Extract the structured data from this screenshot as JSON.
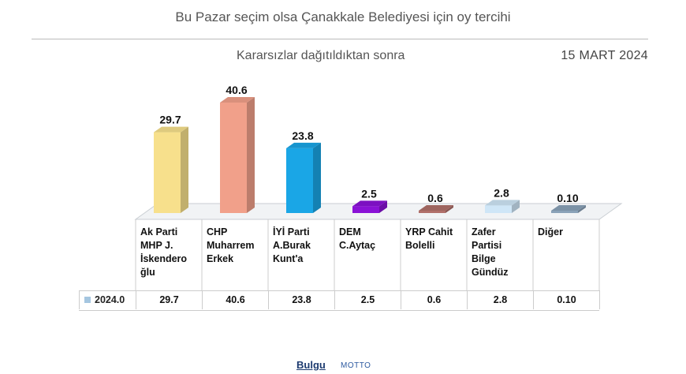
{
  "header": {
    "title": "Bu Pazar seçim olsa Çanakkale Belediyesi için oy tercihi",
    "subtitle": "Kararsızlar dağıtıldıktan sonra",
    "date": "15 MART 2024"
  },
  "chart_data": {
    "type": "bar",
    "categories": [
      "Ak Parti MHP J. İskendero ğlu",
      "CHP Muharrem Erkek",
      "İYİ Parti A.Burak Kunt'a",
      "DEM C.Aytaç",
      "YRP Cahit Bolelli",
      "Zafer Partisi Bilge Gündüz",
      "Diğer"
    ],
    "category_lines": [
      [
        "Ak Parti",
        "MHP J.",
        "İskendero",
        "ğlu"
      ],
      [
        "CHP",
        "Muharrem",
        "Erkek"
      ],
      [
        "İYİ Parti",
        "A.Burak",
        "Kunt'a"
      ],
      [
        "DEM",
        "C.Aytaç"
      ],
      [
        "YRP Cahit",
        "Bolelli"
      ],
      [
        "Zafer",
        "Partisi",
        "Bilge",
        "Gündüz"
      ],
      [
        "Diğer"
      ]
    ],
    "series": [
      {
        "name": "2024.0",
        "values": [
          29.7,
          40.6,
          23.8,
          2.5,
          0.6,
          2.8,
          0.1
        ],
        "labels": [
          "29.7",
          "40.6",
          "23.8",
          "2.5",
          "0.6",
          "2.8",
          "0.10"
        ]
      }
    ],
    "colors": [
      "#f7e08c",
      "#f1a08a",
      "#1aa6e6",
      "#8a12d6",
      "#b0706a",
      "#cfe6f7",
      "#8aa2b8"
    ],
    "ylim": [
      0,
      45
    ],
    "grid": false,
    "legend": "data-table"
  },
  "footer": {
    "logo": "Bulgu",
    "logo2": "MOTTO"
  }
}
